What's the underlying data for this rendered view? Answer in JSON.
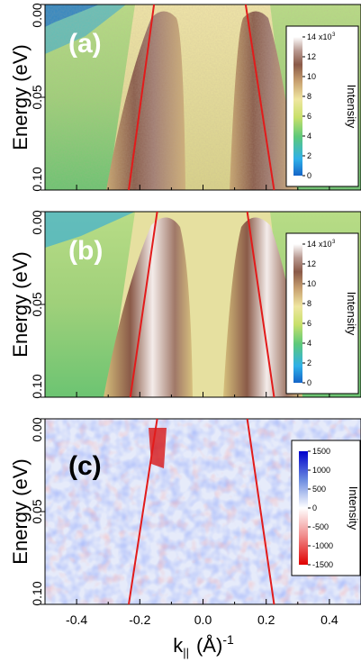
{
  "figure": {
    "ylabel": "Energy (eV)",
    "xlabel": "k",
    "xlabel_sub": "||",
    "xlabel_unit": "(Å)",
    "xlabel_sup": "-1",
    "x_ticks": [
      "-0.4",
      "-0.2",
      "0.0",
      "0.2",
      "0.4"
    ],
    "y_ticks": [
      "0.00",
      "0.05",
      "0.10"
    ]
  },
  "chart_data": [
    {
      "type": "heatmap",
      "panel_label": "(a)",
      "xlim": [
        -0.5,
        0.5
      ],
      "ylim": [
        0.1,
        0.0
      ],
      "colorbar": {
        "label": "Intensity",
        "multiplier": "x10",
        "multiplier_exp": "3",
        "tick_values": [
          0,
          2,
          4,
          6,
          8,
          10,
          12,
          14
        ],
        "tick_labels": [
          "0",
          "2",
          "4",
          "6",
          "8",
          "10",
          "12",
          "14"
        ],
        "colors": [
          "#1565c8",
          "#2fb0e8",
          "#5dc97a",
          "#c8e06a",
          "#efe6a0",
          "#c8a070",
          "#8a5a48",
          "#b89890",
          "#ffffff"
        ]
      },
      "fit_lines": [
        {
          "color": "#e21b1b",
          "points": [
            [
              -0.155,
              0.0
            ],
            [
              -0.235,
              0.1
            ]
          ]
        },
        {
          "color": "#e21b1b",
          "points": [
            [
              0.135,
              0.0
            ],
            [
              0.225,
              0.1
            ]
          ]
        }
      ]
    },
    {
      "type": "heatmap",
      "panel_label": "(b)",
      "xlim": [
        -0.5,
        0.5
      ],
      "ylim": [
        0.1,
        0.0
      ],
      "colorbar": {
        "label": "Intensity",
        "multiplier": "x10",
        "multiplier_exp": "3",
        "tick_values": [
          0,
          2,
          4,
          6,
          8,
          10,
          12,
          14
        ],
        "tick_labels": [
          "0",
          "2",
          "4",
          "6",
          "8",
          "10",
          "12",
          "14"
        ],
        "colors": [
          "#1565c8",
          "#2fb0e8",
          "#5dc97a",
          "#c8e06a",
          "#efe6a0",
          "#c8a070",
          "#8a5a48",
          "#b89890",
          "#ffffff"
        ]
      },
      "fit_lines": [
        {
          "color": "#e21b1b",
          "points": [
            [
              -0.145,
              0.0
            ],
            [
              -0.23,
              0.1
            ]
          ]
        },
        {
          "color": "#e21b1b",
          "points": [
            [
              0.14,
              0.0
            ],
            [
              0.225,
              0.1
            ]
          ]
        }
      ]
    },
    {
      "type": "heatmap",
      "panel_label": "(c)",
      "xlim": [
        -0.5,
        0.5
      ],
      "ylim": [
        0.1,
        0.0
      ],
      "colorbar": {
        "label": "Intensity",
        "tick_values": [
          1500,
          1000,
          500,
          0,
          -500,
          -1000,
          -1500
        ],
        "tick_labels": [
          "1500",
          "1000",
          "500",
          "0",
          "-500",
          "-1000",
          "-1500"
        ],
        "colors": [
          "#0000cc",
          "#6a8ae0",
          "#ffffff",
          "#f08a8a",
          "#e00000"
        ]
      },
      "fit_lines": [
        {
          "color": "#e21b1b",
          "points": [
            [
              -0.145,
              0.0
            ],
            [
              -0.235,
              0.1
            ]
          ]
        },
        {
          "color": "#e21b1b",
          "points": [
            [
              0.14,
              0.0
            ],
            [
              0.225,
              0.1
            ]
          ]
        }
      ]
    }
  ]
}
